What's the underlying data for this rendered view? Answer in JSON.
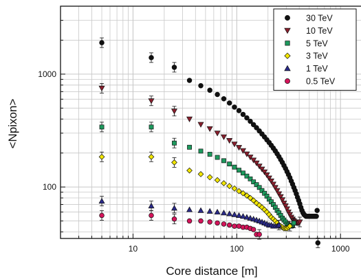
{
  "chart_data": {
    "type": "scatter",
    "title": "",
    "xlabel": "Core distance  [m]",
    "ylabel": "<Npixon>",
    "x_scale": "log",
    "y_scale": "log",
    "xlim": [
      2,
      1600
    ],
    "ylim": [
      35,
      4000
    ],
    "x_ticks": [
      10,
      100,
      1000
    ],
    "x_tick_labels": [
      "10",
      "100",
      "1000"
    ],
    "y_ticks": [
      100,
      1000
    ],
    "y_tick_labels": [
      "100",
      "1000"
    ],
    "grid": true,
    "legend_position": "top-right",
    "series": [
      {
        "name": "30 TeV",
        "marker": "circle",
        "color": "#111111",
        "x": [
          5,
          15,
          25,
          35,
          45,
          55,
          65,
          75,
          85,
          95,
          105,
          115,
          125,
          135,
          145,
          155,
          165,
          175,
          185,
          195,
          205,
          215,
          225,
          235,
          245,
          255,
          265,
          275,
          285,
          295,
          305,
          315,
          325,
          335,
          345,
          355,
          365,
          375,
          385,
          395,
          405,
          415,
          425,
          435,
          445,
          455,
          465,
          475,
          485,
          495,
          505,
          515,
          525,
          535,
          545,
          555,
          565,
          575,
          585,
          595,
          605
        ],
        "y": [
          1900,
          1400,
          1150,
          880,
          790,
          720,
          660,
          605,
          555,
          510,
          475,
          440,
          410,
          382,
          357,
          335,
          314,
          295,
          278,
          262,
          248,
          234,
          221,
          209,
          197,
          186,
          175,
          165,
          155,
          146,
          137,
          129,
          121,
          113,
          106,
          99,
          93,
          87,
          81,
          76,
          71,
          66,
          62,
          59,
          57,
          56,
          55,
          55,
          55,
          55,
          55,
          55,
          55,
          55,
          55,
          55,
          55,
          55,
          55,
          62,
          32
        ]
      },
      {
        "name": "10 TeV",
        "marker": "triangle-down",
        "color": "#8a1f2d",
        "x": [
          5,
          15,
          25,
          35,
          45,
          55,
          65,
          75,
          85,
          95,
          105,
          115,
          125,
          135,
          145,
          155,
          165,
          175,
          185,
          195,
          205,
          215,
          225,
          235,
          245,
          255,
          265,
          275,
          285,
          295,
          305,
          315,
          325,
          335,
          345,
          355,
          365,
          375,
          385,
          395,
          405
        ],
        "y": [
          750,
          580,
          470,
          400,
          358,
          328,
          300,
          278,
          258,
          240,
          224,
          210,
          196,
          184,
          173,
          163,
          153,
          144,
          136,
          128,
          120,
          113,
          106,
          99,
          93,
          87,
          82,
          77,
          72,
          68,
          64,
          60,
          57,
          54,
          52,
          50,
          49,
          48,
          48,
          48,
          49
        ]
      },
      {
        "name": "5 TeV",
        "marker": "square",
        "color": "#1e9a5e",
        "x": [
          5,
          15,
          25,
          35,
          45,
          55,
          65,
          75,
          85,
          95,
          105,
          115,
          125,
          135,
          145,
          155,
          165,
          175,
          185,
          195,
          205,
          215,
          225,
          235,
          245,
          255,
          265,
          275,
          285,
          295,
          305,
          315,
          325,
          335,
          345,
          355
        ],
        "y": [
          340,
          340,
          245,
          225,
          208,
          195,
          183,
          171,
          160,
          150,
          141,
          133,
          125,
          118,
          111,
          105,
          99,
          93,
          88,
          83,
          78,
          74,
          70,
          66,
          62,
          59,
          56,
          53,
          51,
          49,
          47,
          46,
          45,
          45,
          46,
          48
        ]
      },
      {
        "name": "3 TeV",
        "marker": "diamond",
        "color": "#f2e600",
        "x": [
          5,
          15,
          25,
          35,
          45,
          55,
          65,
          75,
          85,
          95,
          105,
          115,
          125,
          135,
          145,
          155,
          165,
          175,
          185,
          195,
          205,
          215,
          225,
          235,
          245,
          255,
          265,
          275,
          285,
          295,
          305,
          315,
          325
        ],
        "y": [
          185,
          185,
          165,
          140,
          130,
          122,
          115,
          108,
          102,
          97,
          92,
          88,
          84,
          80,
          76,
          72,
          69,
          66,
          63,
          60,
          57,
          54,
          52,
          50,
          48,
          46,
          45,
          44,
          43,
          43,
          43,
          44,
          45
        ]
      },
      {
        "name": "1 TeV",
        "marker": "triangle-up",
        "color": "#2a2a8a",
        "x": [
          5,
          15,
          25,
          35,
          45,
          55,
          65,
          75,
          85,
          95,
          105,
          115,
          125,
          135,
          145,
          155,
          165,
          175,
          185,
          195,
          205,
          215,
          225,
          235,
          245,
          255
        ],
        "y": [
          75,
          68,
          65,
          63,
          62,
          61,
          60,
          59,
          58,
          57,
          56,
          55,
          54,
          53,
          52,
          51,
          50,
          49,
          48,
          47,
          46,
          46,
          45,
          45,
          45,
          46
        ]
      },
      {
        "name": "0.5 TeV",
        "marker": "circle",
        "color": "#d4145a",
        "x": [
          5,
          15,
          25,
          35,
          45,
          55,
          65,
          75,
          85,
          95,
          105,
          115,
          125,
          135,
          145,
          155,
          165
        ],
        "y": [
          56,
          56,
          52,
          50,
          50,
          49,
          48,
          47,
          46,
          45,
          45,
          44,
          44,
          43,
          42,
          38,
          38
        ]
      }
    ]
  }
}
